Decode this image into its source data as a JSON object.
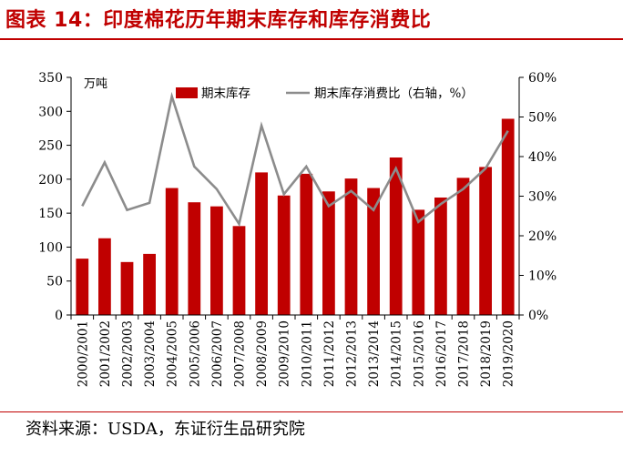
{
  "title": "图表 14：印度棉花历年期末库存和库存消费比",
  "source": "资料来源：USDA，东证衍生品研究院",
  "chart_data": {
    "type": "bar",
    "unit_label": "万吨",
    "categories": [
      "2000/2001",
      "2001/2002",
      "2002/2003",
      "2003/2004",
      "2004/2005",
      "2005/2006",
      "2006/2007",
      "2007/2008",
      "2008/2009",
      "2009/2010",
      "2010/2011",
      "2011/2012",
      "2012/2013",
      "2013/2014",
      "2014/2015",
      "2015/2016",
      "2016/2017",
      "2017/2018",
      "2018/2019",
      "2019/2020"
    ],
    "series": [
      {
        "name": "期末库存",
        "type": "bar",
        "axis": "left",
        "color": "#c00000",
        "values": [
          83,
          113,
          78,
          90,
          187,
          166,
          160,
          131,
          210,
          176,
          208,
          182,
          201,
          187,
          232,
          155,
          173,
          202,
          218,
          289
        ]
      },
      {
        "name": "期末库存消费比（右轴，%）",
        "type": "line",
        "axis": "right",
        "color": "#8c8c8c",
        "values": [
          27.5,
          38.5,
          26.5,
          28.3,
          55.2,
          37.5,
          31.8,
          23,
          47.8,
          30.5,
          37.5,
          27.5,
          31.3,
          26.5,
          37,
          23.5,
          28,
          31.8,
          37,
          46.5
        ]
      }
    ],
    "y_left": {
      "min": 0,
      "max": 350,
      "ticks": [
        "0",
        "50",
        "100",
        "150",
        "200",
        "250",
        "300",
        "350"
      ]
    },
    "y_right": {
      "min": 0,
      "max": 60,
      "ticks": [
        "0%",
        "10%",
        "20%",
        "30%",
        "40%",
        "50%",
        "60%"
      ]
    },
    "legend": "top-center",
    "grid": false
  }
}
